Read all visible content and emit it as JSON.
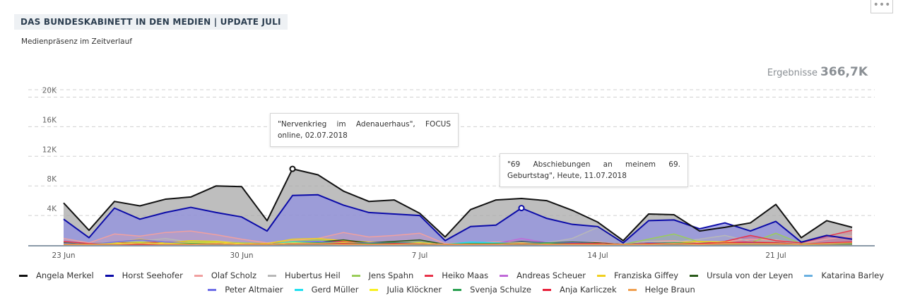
{
  "header": {
    "title": "DAS BUNDESKABINETT IN DEN MEDIEN | UPDATE JULI",
    "subtitle": "Medienpräsenz im Zeitverlauf",
    "menu_icon": "ellipsis-icon",
    "results_label": "Ergebnisse",
    "results_value": "366,7K"
  },
  "tooltips": [
    {
      "text": "\"Nervenkrieg im Adenauerhaus\", FOCUS online, 02.07.2018"
    },
    {
      "text": "\"69 Abschiebungen an meinem 69. Geburtstag\", Heute, 11.07.2018"
    }
  ],
  "chart_data": {
    "type": "area",
    "ylim": [
      0,
      21000
    ],
    "yticks": [
      4000,
      8000,
      12000,
      16000,
      20000
    ],
    "ytick_labels": [
      "4K",
      "8K",
      "12K",
      "16K",
      "20K"
    ],
    "x_start": "2018-06-23",
    "xtick_labels": [
      {
        "day_index": 0,
        "label": "23 Jun"
      },
      {
        "day_index": 7,
        "label": "30 Jun"
      },
      {
        "day_index": 14,
        "label": "7 Jul"
      },
      {
        "day_index": 21,
        "label": "14 Jul"
      },
      {
        "day_index": 28,
        "label": "21 Jul"
      }
    ],
    "grid": true,
    "legend_position": "bottom",
    "markers": [
      {
        "series": "Angela Merkel",
        "day_index": 9,
        "value": 10300
      },
      {
        "series": "Horst Seehofer",
        "day_index": 18,
        "value": 5000
      }
    ],
    "series": [
      {
        "name": "Angela Merkel",
        "color": "#111111",
        "values": [
          5700,
          2000,
          5900,
          5300,
          6200,
          6500,
          8000,
          7900,
          3300,
          10300,
          9500,
          7300,
          5900,
          6100,
          4300,
          1100,
          4800,
          6100,
          6300,
          6000,
          4700,
          3100,
          600,
          4200,
          4100,
          1900,
          2400,
          3000,
          5500,
          1000,
          3300,
          2400
        ]
      },
      {
        "name": "Horst Seehofer",
        "color": "#0b0ba8",
        "values": [
          3500,
          1000,
          5000,
          3500,
          4400,
          5100,
          4400,
          3800,
          1900,
          6700,
          6800,
          5400,
          4400,
          4200,
          4000,
          600,
          2500,
          2700,
          5000,
          3600,
          2800,
          2500,
          300,
          3300,
          3400,
          2200,
          3000,
          1900,
          3200,
          400,
          1300,
          800
        ]
      },
      {
        "name": "Olaf Scholz",
        "color": "#f0a0a0",
        "values": [
          900,
          300,
          1500,
          1200,
          1700,
          1900,
          1400,
          800,
          300,
          600,
          900,
          1700,
          1100,
          1300,
          1600,
          200,
          300,
          400,
          500,
          300,
          300,
          400,
          100,
          500,
          600,
          300,
          500,
          800,
          700,
          200,
          800,
          1200
        ]
      },
      {
        "name": "Hubertus Heil",
        "color": "#b8b8b8",
        "values": [
          300,
          200,
          400,
          500,
          900,
          400,
          600,
          300,
          200,
          400,
          500,
          400,
          300,
          300,
          400,
          100,
          200,
          300,
          400,
          300,
          900,
          2400,
          200,
          500,
          400,
          800,
          1300,
          500,
          600,
          200,
          1400,
          1300
        ]
      },
      {
        "name": "Jens Spahn",
        "color": "#9acd5a",
        "values": [
          200,
          100,
          300,
          400,
          300,
          500,
          400,
          300,
          200,
          500,
          700,
          400,
          300,
          300,
          400,
          100,
          200,
          300,
          200,
          300,
          200,
          200,
          100,
          800,
          1500,
          400,
          300,
          300,
          1600,
          200,
          300,
          200
        ]
      },
      {
        "name": "Heiko Maas",
        "color": "#e8334a",
        "values": [
          500,
          200,
          300,
          300,
          400,
          300,
          300,
          200,
          200,
          300,
          400,
          500,
          300,
          300,
          300,
          100,
          200,
          200,
          300,
          200,
          200,
          300,
          100,
          200,
          300,
          200,
          500,
          1300,
          600,
          300,
          1200,
          2000
        ]
      },
      {
        "name": "Andreas Scheuer",
        "color": "#c06ad8",
        "values": [
          200,
          100,
          200,
          300,
          200,
          200,
          200,
          200,
          100,
          300,
          300,
          300,
          200,
          200,
          200,
          100,
          200,
          200,
          900,
          300,
          200,
          200,
          100,
          200,
          300,
          200,
          300,
          300,
          300,
          100,
          300,
          200
        ]
      },
      {
        "name": "Franziska Giffey",
        "color": "#f0d020",
        "values": [
          100,
          100,
          300,
          800,
          300,
          600,
          500,
          200,
          200,
          800,
          900,
          600,
          400,
          300,
          200,
          100,
          100,
          200,
          300,
          200,
          200,
          200,
          100,
          300,
          300,
          500,
          400,
          300,
          300,
          100,
          200,
          200
        ]
      },
      {
        "name": "Ursula von der Leyen",
        "color": "#2a5a1a",
        "values": [
          300,
          100,
          200,
          300,
          200,
          300,
          300,
          200,
          100,
          300,
          400,
          700,
          300,
          500,
          700,
          100,
          200,
          200,
          500,
          300,
          400,
          300,
          100,
          300,
          300,
          200,
          300,
          300,
          300,
          100,
          200,
          200
        ]
      },
      {
        "name": "Katarina Barley",
        "color": "#6ab0e0",
        "values": [
          200,
          100,
          200,
          200,
          200,
          200,
          300,
          200,
          100,
          300,
          400,
          300,
          200,
          300,
          300,
          100,
          300,
          300,
          300,
          200,
          300,
          200,
          100,
          200,
          300,
          200,
          300,
          200,
          300,
          100,
          200,
          200
        ]
      },
      {
        "name": "Peter Altmaier",
        "color": "#6f6fe8",
        "values": [
          200,
          100,
          400,
          700,
          400,
          300,
          300,
          200,
          100,
          400,
          500,
          300,
          300,
          300,
          300,
          100,
          200,
          300,
          400,
          300,
          300,
          200,
          100,
          300,
          300,
          200,
          300,
          300,
          300,
          100,
          300,
          300
        ]
      },
      {
        "name": "Gerd Müller",
        "color": "#20e0f0",
        "values": [
          100,
          100,
          100,
          200,
          100,
          200,
          200,
          100,
          100,
          400,
          300,
          200,
          200,
          200,
          200,
          100,
          400,
          300,
          200,
          200,
          200,
          200,
          100,
          200,
          200,
          200,
          200,
          200,
          200,
          100,
          200,
          200
        ]
      },
      {
        "name": "Julia Klöckner",
        "color": "#f8f020",
        "values": [
          100,
          100,
          200,
          300,
          200,
          300,
          300,
          200,
          100,
          300,
          300,
          300,
          200,
          200,
          300,
          100,
          200,
          200,
          300,
          200,
          200,
          200,
          100,
          200,
          300,
          200,
          200,
          200,
          300,
          100,
          200,
          200
        ]
      },
      {
        "name": "Svenja Schulze",
        "color": "#2aa050",
        "values": [
          100,
          100,
          100,
          200,
          100,
          200,
          200,
          100,
          100,
          200,
          300,
          200,
          200,
          300,
          200,
          100,
          200,
          200,
          200,
          300,
          200,
          200,
          100,
          200,
          300,
          200,
          200,
          200,
          300,
          100,
          200,
          200
        ]
      },
      {
        "name": "Anja Karliczek",
        "color": "#e8203a",
        "values": [
          100,
          100,
          100,
          100,
          100,
          100,
          200,
          100,
          100,
          200,
          200,
          200,
          100,
          200,
          200,
          100,
          100,
          100,
          200,
          100,
          200,
          200,
          100,
          200,
          200,
          200,
          300,
          400,
          300,
          100,
          300,
          400
        ]
      },
      {
        "name": "Helge Braun",
        "color": "#f0a050",
        "values": [
          100,
          100,
          100,
          200,
          100,
          100,
          200,
          100,
          100,
          200,
          200,
          100,
          100,
          100,
          200,
          100,
          100,
          100,
          200,
          100,
          100,
          100,
          100,
          100,
          200,
          100,
          200,
          200,
          200,
          100,
          200,
          300
        ]
      }
    ],
    "legend_rows": [
      [
        "Angela Merkel",
        "Horst Seehofer",
        "Olaf Scholz",
        "Hubertus Heil",
        "Jens Spahn",
        "Heiko Maas",
        "Andreas Scheuer",
        "Franziska Giffey",
        "Ursula von der Leyen",
        "Katarina Barley"
      ],
      [
        "Peter Altmaier",
        "Gerd Müller",
        "Julia Klöckner",
        "Svenja Schulze",
        "Anja Karliczek",
        "Helge Braun"
      ]
    ]
  }
}
